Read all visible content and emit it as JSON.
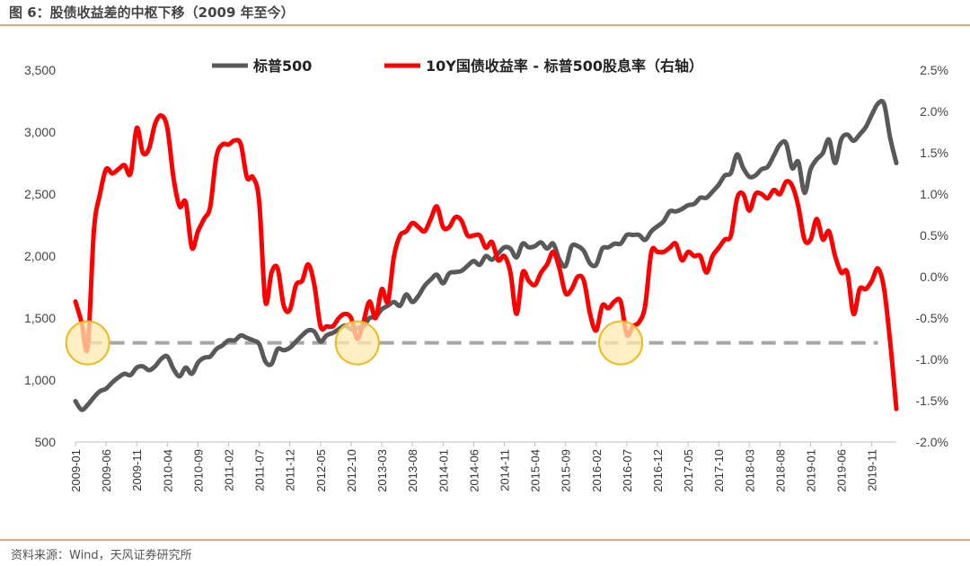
{
  "title": "图 6：股债收益差的中枢下移（2009 年至今）",
  "source": "资料来源：Wind，天风证券研究所",
  "colors": {
    "spx": "#595959",
    "spread": "#ff0000",
    "ref": "#a6a6a6",
    "circle_fill": "#fde9b0",
    "circle_stroke": "#f2b818",
    "rule": "#e3a779"
  },
  "chart_data": {
    "type": "line",
    "title": "",
    "legend_position": "top",
    "grid": false,
    "xlabel": "",
    "ylabel": "",
    "x_tick_labels": [
      "2009-01",
      "2009-06",
      "2009-11",
      "2010-04",
      "2010-09",
      "2011-02",
      "2011-07",
      "2011-12",
      "2012-05",
      "2012-10",
      "2013-03",
      "2013-08",
      "2014-01",
      "2014-06",
      "2014-11",
      "2015-04",
      "2015-09",
      "2016-02",
      "2016-07",
      "2016-12",
      "2017-05",
      "2017-10",
      "2018-03",
      "2018-08",
      "2019-01",
      "2019-06",
      "2019-11"
    ],
    "x_range": [
      "2009-01",
      "2020-03"
    ],
    "y_left": {
      "range": [
        500,
        3500
      ],
      "tick_labels": [
        "500",
        "1,000",
        "1,500",
        "2,000",
        "2,500",
        "3,000",
        "3,500"
      ]
    },
    "y_right": {
      "range": [
        -2.0,
        2.5
      ],
      "unit": "%",
      "tick_labels": [
        "-2.0%",
        "-1.5%",
        "-1.0%",
        "-0.5%",
        "0.0%",
        "0.5%",
        "1.0%",
        "1.5%",
        "2.0%",
        "2.5%"
      ]
    },
    "reference_line": {
      "axis": "right",
      "value": -0.8
    },
    "highlight_points": [
      {
        "x": "2009-03",
        "y_right": -0.8
      },
      {
        "x": "2012-11",
        "y_right": -0.8
      },
      {
        "x": "2016-06",
        "y_right": -0.8
      }
    ],
    "series": [
      {
        "name": "标普500",
        "axis": "left",
        "points": [
          [
            "2009-01",
            830
          ],
          [
            "2009-02",
            760
          ],
          [
            "2009-03",
            800
          ],
          [
            "2009-04",
            860
          ],
          [
            "2009-05",
            910
          ],
          [
            "2009-06",
            930
          ],
          [
            "2009-07",
            980
          ],
          [
            "2009-08",
            1020
          ],
          [
            "2009-09",
            1050
          ],
          [
            "2009-10",
            1040
          ],
          [
            "2009-11",
            1100
          ],
          [
            "2009-12",
            1110
          ],
          [
            "2010-01",
            1080
          ],
          [
            "2010-02",
            1110
          ],
          [
            "2010-03",
            1170
          ],
          [
            "2010-04",
            1190
          ],
          [
            "2010-05",
            1090
          ],
          [
            "2010-06",
            1030
          ],
          [
            "2010-07",
            1100
          ],
          [
            "2010-08",
            1050
          ],
          [
            "2010-09",
            1140
          ],
          [
            "2010-10",
            1180
          ],
          [
            "2010-11",
            1190
          ],
          [
            "2010-12",
            1250
          ],
          [
            "2011-01",
            1280
          ],
          [
            "2011-02",
            1320
          ],
          [
            "2011-03",
            1320
          ],
          [
            "2011-04",
            1360
          ],
          [
            "2011-05",
            1340
          ],
          [
            "2011-06",
            1320
          ],
          [
            "2011-07",
            1290
          ],
          [
            "2011-08",
            1150
          ],
          [
            "2011-09",
            1130
          ],
          [
            "2011-10",
            1250
          ],
          [
            "2011-11",
            1240
          ],
          [
            "2011-12",
            1260
          ],
          [
            "2012-01",
            1310
          ],
          [
            "2012-02",
            1360
          ],
          [
            "2012-03",
            1400
          ],
          [
            "2012-04",
            1390
          ],
          [
            "2012-05",
            1310
          ],
          [
            "2012-06",
            1360
          ],
          [
            "2012-07",
            1380
          ],
          [
            "2012-08",
            1410
          ],
          [
            "2012-09",
            1440
          ],
          [
            "2012-10",
            1410
          ],
          [
            "2012-11",
            1420
          ],
          [
            "2012-12",
            1430
          ],
          [
            "2013-01",
            1500
          ],
          [
            "2013-02",
            1510
          ],
          [
            "2013-03",
            1570
          ],
          [
            "2013-04",
            1600
          ],
          [
            "2013-05",
            1630
          ],
          [
            "2013-06",
            1600
          ],
          [
            "2013-07",
            1690
          ],
          [
            "2013-08",
            1630
          ],
          [
            "2013-09",
            1680
          ],
          [
            "2013-10",
            1760
          ],
          [
            "2013-11",
            1810
          ],
          [
            "2013-12",
            1850
          ],
          [
            "2014-01",
            1780
          ],
          [
            "2014-02",
            1860
          ],
          [
            "2014-03",
            1870
          ],
          [
            "2014-04",
            1880
          ],
          [
            "2014-05",
            1920
          ],
          [
            "2014-06",
            1960
          ],
          [
            "2014-07",
            1930
          ],
          [
            "2014-08",
            2000
          ],
          [
            "2014-09",
            1970
          ],
          [
            "2014-10",
            2020
          ],
          [
            "2014-11",
            2070
          ],
          [
            "2014-12",
            2060
          ],
          [
            "2015-01",
            1990
          ],
          [
            "2015-02",
            2100
          ],
          [
            "2015-03",
            2070
          ],
          [
            "2015-04",
            2080
          ],
          [
            "2015-05",
            2110
          ],
          [
            "2015-06",
            2060
          ],
          [
            "2015-07",
            2100
          ],
          [
            "2015-08",
            1970
          ],
          [
            "2015-09",
            1920
          ],
          [
            "2015-10",
            2080
          ],
          [
            "2015-11",
            2080
          ],
          [
            "2015-12",
            2040
          ],
          [
            "2016-01",
            1940
          ],
          [
            "2016-02",
            1930
          ],
          [
            "2016-03",
            2060
          ],
          [
            "2016-04",
            2070
          ],
          [
            "2016-05",
            2100
          ],
          [
            "2016-06",
            2100
          ],
          [
            "2016-07",
            2170
          ],
          [
            "2016-08",
            2170
          ],
          [
            "2016-09",
            2170
          ],
          [
            "2016-10",
            2130
          ],
          [
            "2016-11",
            2200
          ],
          [
            "2016-12",
            2240
          ],
          [
            "2017-01",
            2280
          ],
          [
            "2017-02",
            2360
          ],
          [
            "2017-03",
            2360
          ],
          [
            "2017-04",
            2380
          ],
          [
            "2017-05",
            2410
          ],
          [
            "2017-06",
            2420
          ],
          [
            "2017-07",
            2470
          ],
          [
            "2017-08",
            2470
          ],
          [
            "2017-09",
            2520
          ],
          [
            "2017-10",
            2575
          ],
          [
            "2017-11",
            2650
          ],
          [
            "2017-12",
            2670
          ],
          [
            "2018-01",
            2820
          ],
          [
            "2018-02",
            2710
          ],
          [
            "2018-03",
            2640
          ],
          [
            "2018-04",
            2650
          ],
          [
            "2018-05",
            2700
          ],
          [
            "2018-06",
            2720
          ],
          [
            "2018-07",
            2810
          ],
          [
            "2018-08",
            2900
          ],
          [
            "2018-09",
            2910
          ],
          [
            "2018-10",
            2710
          ],
          [
            "2018-11",
            2760
          ],
          [
            "2018-12",
            2510
          ],
          [
            "2019-01",
            2700
          ],
          [
            "2019-02",
            2780
          ],
          [
            "2019-03",
            2830
          ],
          [
            "2019-04",
            2940
          ],
          [
            "2019-05",
            2750
          ],
          [
            "2019-06",
            2940
          ],
          [
            "2019-07",
            2980
          ],
          [
            "2019-08",
            2930
          ],
          [
            "2019-09",
            2980
          ],
          [
            "2019-10",
            3040
          ],
          [
            "2019-11",
            3140
          ],
          [
            "2019-12",
            3230
          ],
          [
            "2020-01",
            3225
          ],
          [
            "2020-02",
            2950
          ],
          [
            "2020-03",
            2750
          ]
        ]
      },
      {
        "name": "10Y国债收益率 - 标普500股息率（右轴）",
        "axis": "right",
        "points": [
          [
            "2009-01",
            -0.3
          ],
          [
            "2009-02",
            -0.55
          ],
          [
            "2009-03",
            -0.85
          ],
          [
            "2009-04",
            0.55
          ],
          [
            "2009-05",
            1.0
          ],
          [
            "2009-06",
            1.3
          ],
          [
            "2009-07",
            1.25
          ],
          [
            "2009-08",
            1.3
          ],
          [
            "2009-09",
            1.35
          ],
          [
            "2009-10",
            1.25
          ],
          [
            "2009-11",
            1.8
          ],
          [
            "2009-12",
            1.5
          ],
          [
            "2010-01",
            1.55
          ],
          [
            "2010-02",
            1.85
          ],
          [
            "2010-03",
            1.95
          ],
          [
            "2010-04",
            1.8
          ],
          [
            "2010-05",
            1.2
          ],
          [
            "2010-06",
            0.85
          ],
          [
            "2010-07",
            0.9
          ],
          [
            "2010-08",
            0.35
          ],
          [
            "2010-09",
            0.55
          ],
          [
            "2010-10",
            0.7
          ],
          [
            "2010-11",
            0.85
          ],
          [
            "2010-12",
            1.45
          ],
          [
            "2011-01",
            1.6
          ],
          [
            "2011-02",
            1.6
          ],
          [
            "2011-03",
            1.65
          ],
          [
            "2011-04",
            1.6
          ],
          [
            "2011-05",
            1.2
          ],
          [
            "2011-06",
            1.2
          ],
          [
            "2011-07",
            0.9
          ],
          [
            "2011-08",
            -0.3
          ],
          [
            "2011-09",
            0.05
          ],
          [
            "2011-10",
            0.1
          ],
          [
            "2011-11",
            -0.35
          ],
          [
            "2011-12",
            -0.4
          ],
          [
            "2012-01",
            -0.1
          ],
          [
            "2012-02",
            -0.05
          ],
          [
            "2012-03",
            0.15
          ],
          [
            "2012-04",
            -0.1
          ],
          [
            "2012-05",
            -0.6
          ],
          [
            "2012-06",
            -0.6
          ],
          [
            "2012-07",
            -0.6
          ],
          [
            "2012-08",
            -0.5
          ],
          [
            "2012-09",
            -0.45
          ],
          [
            "2012-10",
            -0.5
          ],
          [
            "2012-11",
            -0.75
          ],
          [
            "2012-12",
            -0.55
          ],
          [
            "2013-01",
            -0.3
          ],
          [
            "2013-02",
            -0.5
          ],
          [
            "2013-03",
            -0.15
          ],
          [
            "2013-04",
            -0.3
          ],
          [
            "2013-05",
            0.25
          ],
          [
            "2013-06",
            0.5
          ],
          [
            "2013-07",
            0.55
          ],
          [
            "2013-08",
            0.65
          ],
          [
            "2013-09",
            0.6
          ],
          [
            "2013-10",
            0.55
          ],
          [
            "2013-11",
            0.7
          ],
          [
            "2013-12",
            0.85
          ],
          [
            "2014-01",
            0.6
          ],
          [
            "2014-02",
            0.6
          ],
          [
            "2014-03",
            0.72
          ],
          [
            "2014-04",
            0.68
          ],
          [
            "2014-05",
            0.5
          ],
          [
            "2014-06",
            0.5
          ],
          [
            "2014-07",
            0.5
          ],
          [
            "2014-08",
            0.35
          ],
          [
            "2014-09",
            0.42
          ],
          [
            "2014-10",
            0.2
          ],
          [
            "2014-11",
            0.25
          ],
          [
            "2014-12",
            0.05
          ],
          [
            "2015-01",
            -0.45
          ],
          [
            "2015-02",
            0.05
          ],
          [
            "2015-03",
            -0.05
          ],
          [
            "2015-04",
            -0.1
          ],
          [
            "2015-05",
            0.05
          ],
          [
            "2015-06",
            0.15
          ],
          [
            "2015-07",
            0.3
          ],
          [
            "2015-08",
            0.1
          ],
          [
            "2015-09",
            -0.2
          ],
          [
            "2015-10",
            -0.15
          ],
          [
            "2015-11",
            0.0
          ],
          [
            "2015-12",
            -0.05
          ],
          [
            "2016-01",
            -0.45
          ],
          [
            "2016-02",
            -0.65
          ],
          [
            "2016-03",
            -0.35
          ],
          [
            "2016-04",
            -0.38
          ],
          [
            "2016-05",
            -0.3
          ],
          [
            "2016-06",
            -0.3
          ],
          [
            "2016-07",
            -0.7
          ],
          [
            "2016-08",
            -0.6
          ],
          [
            "2016-09",
            -0.55
          ],
          [
            "2016-10",
            -0.35
          ],
          [
            "2016-11",
            0.3
          ],
          [
            "2016-12",
            0.3
          ],
          [
            "2017-01",
            0.3
          ],
          [
            "2017-02",
            0.35
          ],
          [
            "2017-03",
            0.4
          ],
          [
            "2017-04",
            0.2
          ],
          [
            "2017-05",
            0.3
          ],
          [
            "2017-06",
            0.25
          ],
          [
            "2017-07",
            0.25
          ],
          [
            "2017-08",
            0.05
          ],
          [
            "2017-09",
            0.25
          ],
          [
            "2017-10",
            0.35
          ],
          [
            "2017-11",
            0.45
          ],
          [
            "2017-12",
            0.5
          ],
          [
            "2018-01",
            0.95
          ],
          [
            "2018-02",
            1.0
          ],
          [
            "2018-03",
            0.8
          ],
          [
            "2018-04",
            1.0
          ],
          [
            "2018-05",
            1.0
          ],
          [
            "2018-06",
            0.95
          ],
          [
            "2018-07",
            1.05
          ],
          [
            "2018-08",
            1.0
          ],
          [
            "2018-09",
            1.15
          ],
          [
            "2018-10",
            1.1
          ],
          [
            "2018-11",
            0.85
          ],
          [
            "2018-12",
            0.45
          ],
          [
            "2019-01",
            0.45
          ],
          [
            "2019-02",
            0.7
          ],
          [
            "2019-03",
            0.45
          ],
          [
            "2019-04",
            0.55
          ],
          [
            "2019-05",
            0.25
          ],
          [
            "2019-06",
            0.05
          ],
          [
            "2019-07",
            0.05
          ],
          [
            "2019-08",
            -0.45
          ],
          [
            "2019-09",
            -0.15
          ],
          [
            "2019-10",
            -0.15
          ],
          [
            "2019-11",
            -0.05
          ],
          [
            "2019-12",
            0.1
          ],
          [
            "2020-01",
            -0.15
          ],
          [
            "2020-02",
            -0.8
          ],
          [
            "2020-03",
            -1.6
          ]
        ]
      }
    ]
  }
}
